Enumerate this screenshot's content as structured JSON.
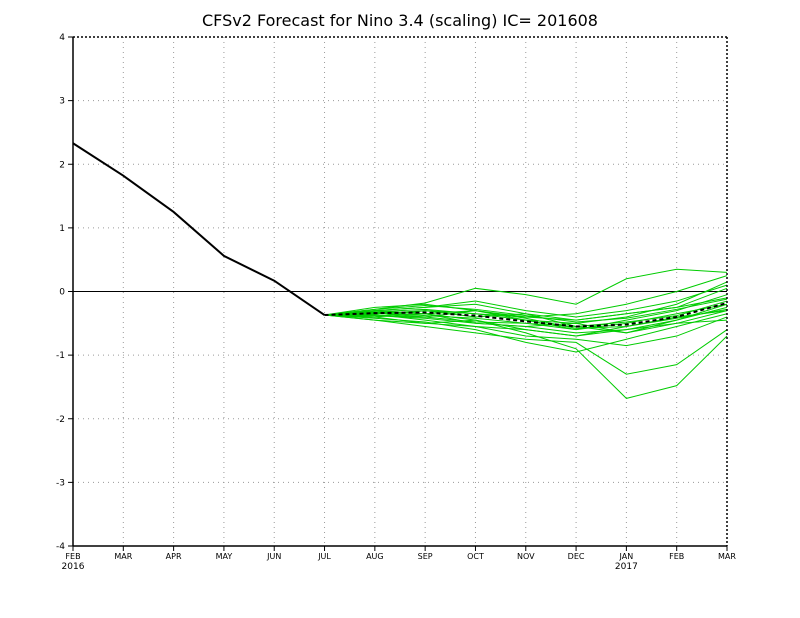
{
  "chart_data": {
    "type": "line",
    "title": "CFSv2 Forecast for Nino 3.4 (scaling)  IC= 201608",
    "xlabel": "",
    "ylabel": "",
    "categories": [
      "FEB",
      "MAR",
      "APR",
      "MAY",
      "JUN",
      "JUL",
      "AUG",
      "SEP",
      "OCT",
      "NOV",
      "DEC",
      "JAN",
      "FEB",
      "MAR"
    ],
    "year_labels": [
      {
        "index": 0,
        "text": "2016"
      },
      {
        "index": 11,
        "text": "2017"
      }
    ],
    "ylim": [
      -4,
      4
    ],
    "yticks": [
      -4,
      -3,
      -2,
      -1,
      0,
      1,
      2,
      3,
      4
    ],
    "grid": true,
    "zero_line": true,
    "colors": {
      "observed": "#000000",
      "members": "#00cc00",
      "mean": "#000000"
    },
    "observed": {
      "values": [
        2.33,
        1.82,
        1.25,
        0.56,
        0.17,
        -0.37
      ]
    },
    "ensemble_mean": {
      "start_index": 5,
      "values": [
        -0.37,
        -0.34,
        -0.33,
        -0.38,
        -0.47,
        -0.55,
        -0.52,
        -0.4,
        -0.18
      ],
      "style": "dashed"
    },
    "ensemble_members": [
      [
        -0.37,
        -0.3,
        -0.25,
        -0.2,
        -0.35,
        -0.45,
        -0.35,
        -0.25,
        -0.1
      ],
      [
        -0.37,
        -0.38,
        -0.42,
        -0.5,
        -0.55,
        -0.65,
        -0.6,
        -0.45,
        -0.2
      ],
      [
        -0.37,
        -0.28,
        -0.18,
        0.05,
        -0.05,
        -0.2,
        0.2,
        0.35,
        0.3
      ],
      [
        -0.37,
        -0.45,
        -0.55,
        -0.65,
        -0.75,
        -0.8,
        -1.3,
        -1.15,
        -0.6
      ],
      [
        -0.37,
        -0.32,
        -0.35,
        -0.45,
        -0.65,
        -0.9,
        -1.68,
        -1.48,
        -0.7
      ],
      [
        -0.37,
        -0.4,
        -0.5,
        -0.55,
        -0.6,
        -0.7,
        -0.55,
        -0.4,
        -0.3
      ],
      [
        -0.37,
        -0.25,
        -0.2,
        -0.3,
        -0.4,
        -0.35,
        -0.2,
        0.0,
        0.25
      ],
      [
        -0.37,
        -0.33,
        -0.38,
        -0.42,
        -0.5,
        -0.6,
        -0.45,
        -0.3,
        -0.05
      ],
      [
        -0.37,
        -0.4,
        -0.3,
        -0.35,
        -0.45,
        -0.5,
        -0.4,
        -0.2,
        0.15
      ],
      [
        -0.37,
        -0.36,
        -0.45,
        -0.55,
        -0.7,
        -0.75,
        -0.85,
        -0.7,
        -0.4
      ],
      [
        -0.37,
        -0.3,
        -0.25,
        -0.15,
        -0.3,
        -0.4,
        -0.3,
        -0.15,
        0.1
      ],
      [
        -0.37,
        -0.42,
        -0.48,
        -0.6,
        -0.8,
        -0.95,
        -0.75,
        -0.55,
        -0.35
      ],
      [
        -0.37,
        -0.35,
        -0.3,
        -0.4,
        -0.35,
        -0.55,
        -0.65,
        -0.45,
        -0.25
      ],
      [
        -0.37,
        -0.38,
        -0.4,
        -0.3,
        -0.45,
        -0.6,
        -0.5,
        -0.35,
        -0.2
      ],
      [
        -0.37,
        -0.32,
        -0.28,
        -0.35,
        -0.4,
        -0.45,
        -0.35,
        -0.25,
        0.05
      ],
      [
        -0.37,
        -0.4,
        -0.35,
        -0.5,
        -0.55,
        -0.5,
        -0.65,
        -0.5,
        -0.3
      ],
      [
        -0.37,
        -0.28,
        -0.22,
        -0.28,
        -0.38,
        -0.48,
        -0.42,
        -0.28,
        -0.12
      ],
      [
        -0.37,
        -0.45,
        -0.5,
        -0.45,
        -0.6,
        -0.7,
        -0.6,
        -0.5,
        -0.45
      ],
      [
        -0.37,
        -0.34,
        -0.4,
        -0.48,
        -0.5,
        -0.55,
        -0.48,
        -0.38,
        -0.15
      ],
      [
        -0.37,
        -0.3,
        -0.35,
        -0.3,
        -0.42,
        -0.58,
        -0.55,
        -0.42,
        -0.28
      ]
    ]
  }
}
